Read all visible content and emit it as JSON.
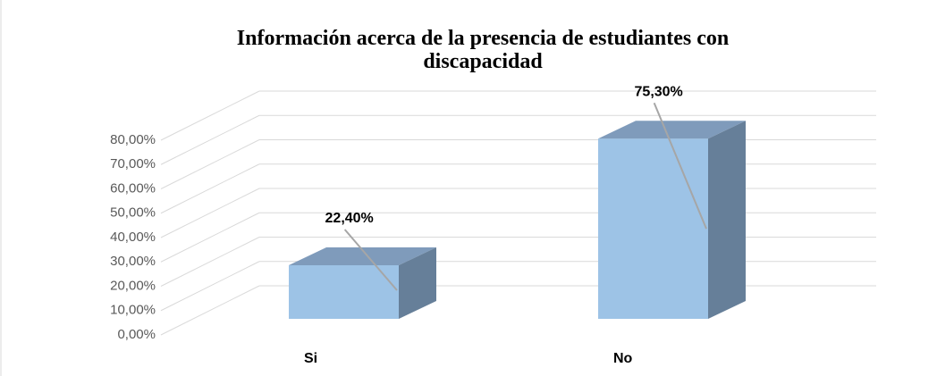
{
  "chart_data": {
    "type": "bar3d",
    "title": "Información acerca de la presencia de estudiantes con discapacidad",
    "categories": [
      "Si",
      "No"
    ],
    "values": [
      22.4,
      75.3
    ],
    "value_labels": [
      "22,40%",
      "75,30%"
    ],
    "color": "#9dc3e6",
    "ylim": [
      0,
      100
    ],
    "yticks": [
      {
        "value": 0,
        "label": "0,00%"
      },
      {
        "value": 10,
        "label": "10,00%"
      },
      {
        "value": 20,
        "label": "20,00%"
      },
      {
        "value": 30,
        "label": "30,00%"
      },
      {
        "value": 40,
        "label": "40,00%"
      },
      {
        "value": 50,
        "label": "50,00%"
      },
      {
        "value": 60,
        "label": "60,00%"
      },
      {
        "value": 70,
        "label": "70,00%"
      },
      {
        "value": 80,
        "label": "80,00%"
      }
    ],
    "grid": true
  }
}
